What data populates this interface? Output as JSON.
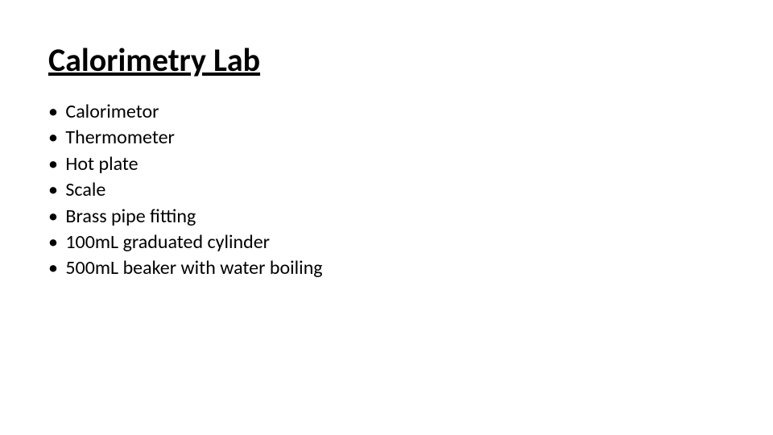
{
  "slide": {
    "title": "Calorimetry Lab",
    "title_fontsize": 40,
    "title_color": "#000000",
    "title_underline": true,
    "background_color": "#ffffff",
    "bullet_char": "•",
    "item_fontsize": 24,
    "item_color": "#000000",
    "items": [
      "Calorimetor",
      "Thermometer",
      "Hot plate",
      "Scale",
      "Brass pipe fitting",
      "100mL graduated cylinder",
      "500mL beaker with water boiling"
    ]
  }
}
